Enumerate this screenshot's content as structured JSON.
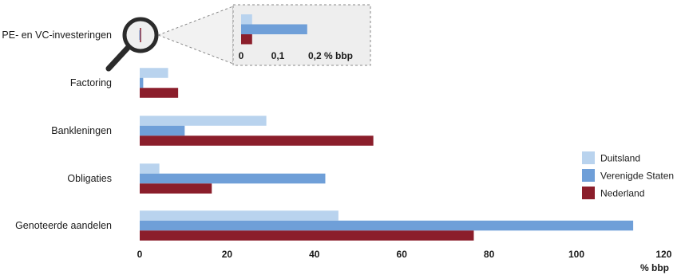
{
  "colors": {
    "Duitsland": "#b9d3ee",
    "Verenigde Staten": "#6f9fd8",
    "Nederland": "#8b1e2b"
  },
  "chart_data": [
    {
      "type": "bar",
      "orientation": "horizontal",
      "categories": [
        "PE- en VC-investeringen",
        "Factoring",
        "Bankleningen",
        "Obligaties",
        "Genoteerde aandelen"
      ],
      "series": [
        {
          "name": "Duitsland",
          "values": [
            0.03,
            6.5,
            29,
            4.5,
            45.5
          ]
        },
        {
          "name": "Verenigde Staten",
          "values": [
            0.18,
            0.8,
            10.3,
            42.5,
            113
          ]
        },
        {
          "name": "Nederland",
          "values": [
            0.03,
            8.8,
            53.5,
            16.5,
            76.5
          ]
        }
      ],
      "xlim": [
        0,
        120
      ],
      "xticks": [
        "0",
        "20",
        "40",
        "60",
        "80",
        "100",
        "120"
      ],
      "xunit": "% bbp",
      "legend": "right"
    },
    {
      "type": "bar",
      "orientation": "horizontal",
      "inset_of": "PE- en VC-investeringen",
      "series": [
        {
          "name": "Duitsland",
          "values": [
            0.03
          ]
        },
        {
          "name": "Verenigde Staten",
          "values": [
            0.18
          ]
        },
        {
          "name": "Nederland",
          "values": [
            0.03
          ]
        }
      ],
      "xlim": [
        0,
        0.2
      ],
      "xticks": [
        "0",
        "0,1",
        "0,2 % bbp"
      ]
    }
  ]
}
